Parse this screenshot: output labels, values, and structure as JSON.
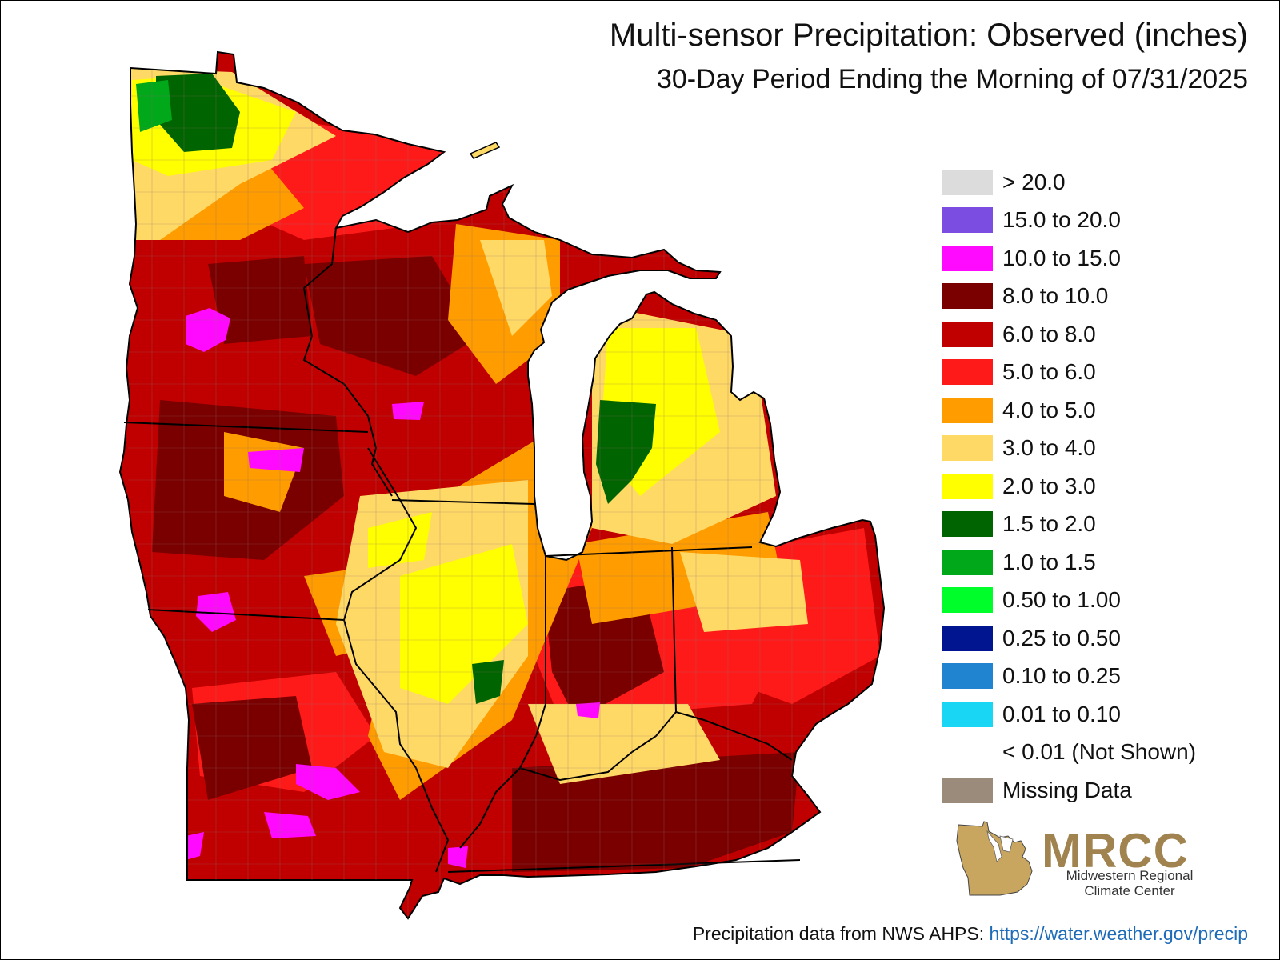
{
  "map": {
    "title": "Multi-sensor Precipitation: Observed (inches)",
    "subtitle": "30-Day Period Ending the Morning of 07/31/2025",
    "legend": [
      {
        "label": "> 20.0",
        "color": "#dcdcdc"
      },
      {
        "label": "15.0 to 20.0",
        "color": "#7b4de0"
      },
      {
        "label": "10.0 to 15.0",
        "color": "#ff0aff"
      },
      {
        "label": "8.0 to 10.0",
        "color": "#7a0000"
      },
      {
        "label": "6.0 to 8.0",
        "color": "#c00000"
      },
      {
        "label": "5.0 to 6.0",
        "color": "#ff1a1a"
      },
      {
        "label": "4.0 to 5.0",
        "color": "#ff9c00"
      },
      {
        "label": "3.0 to 4.0",
        "color": "#ffd966"
      },
      {
        "label": "2.0 to 3.0",
        "color": "#ffff00"
      },
      {
        "label": "1.5 to 2.0",
        "color": "#006400"
      },
      {
        "label": "1.0 to 1.5",
        "color": "#00a81a"
      },
      {
        "label": "0.50 to 1.00",
        "color": "#00ff2a"
      },
      {
        "label": "0.25 to 0.50",
        "color": "#00158f"
      },
      {
        "label": "0.10 to 0.25",
        "color": "#2184d0"
      },
      {
        "label": "0.01 to 0.10",
        "color": "#1ad6f5"
      },
      {
        "label": "< 0.01 (Not Shown)",
        "color": "#ffffff"
      },
      {
        "label": "Missing Data",
        "color": "#9b8b7b"
      }
    ],
    "logo": {
      "name": "MRCC",
      "line1": "Midwestern Regional",
      "line2": "Climate Center"
    },
    "credit": {
      "text": "Precipitation data from NWS AHPS:",
      "link": "https://water.weather.gov/precip"
    }
  }
}
